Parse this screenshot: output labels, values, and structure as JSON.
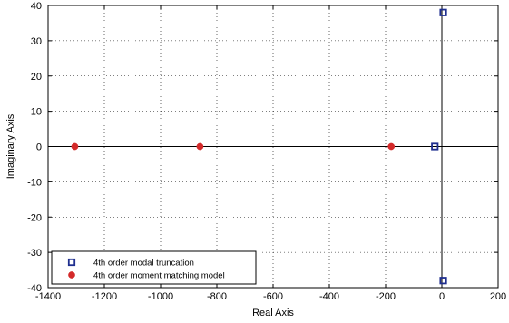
{
  "chart_data": {
    "type": "scatter",
    "title": "",
    "xlabel": "Real Axis",
    "ylabel": "Imaginary Axis",
    "xlim": [
      -1400,
      200
    ],
    "ylim": [
      -40,
      40
    ],
    "xticks": [
      -1400,
      -1200,
      -1000,
      -800,
      -600,
      -400,
      -200,
      0,
      200
    ],
    "yticks": [
      -40,
      -30,
      -20,
      -10,
      0,
      10,
      20,
      30,
      40
    ],
    "xtick_labels": [
      "-1400",
      "-1200",
      "-1000",
      "-800",
      "-600",
      "-400",
      "-200",
      "0",
      "200"
    ],
    "ytick_labels": [
      "-40",
      "-30",
      "-20",
      "-10",
      "0",
      "10",
      "20",
      "30",
      "40"
    ],
    "grid": true,
    "legend_position": "bottom-left",
    "reference_lines": {
      "horizontal_y": 0,
      "vertical_x": 0
    },
    "series": [
      {
        "name": "4th order modal truncation",
        "marker": "open-square",
        "color": "#1f2f8f",
        "points": [
          {
            "x": 5,
            "y": 38
          },
          {
            "x": -25,
            "y": 0
          },
          {
            "x": 5,
            "y": -38
          }
        ]
      },
      {
        "name": "4th order moment matching model",
        "marker": "filled-circle",
        "color": "#d42a2a",
        "points": [
          {
            "x": -1305,
            "y": 0
          },
          {
            "x": -860,
            "y": 0
          },
          {
            "x": -180,
            "y": 0
          }
        ]
      }
    ]
  }
}
